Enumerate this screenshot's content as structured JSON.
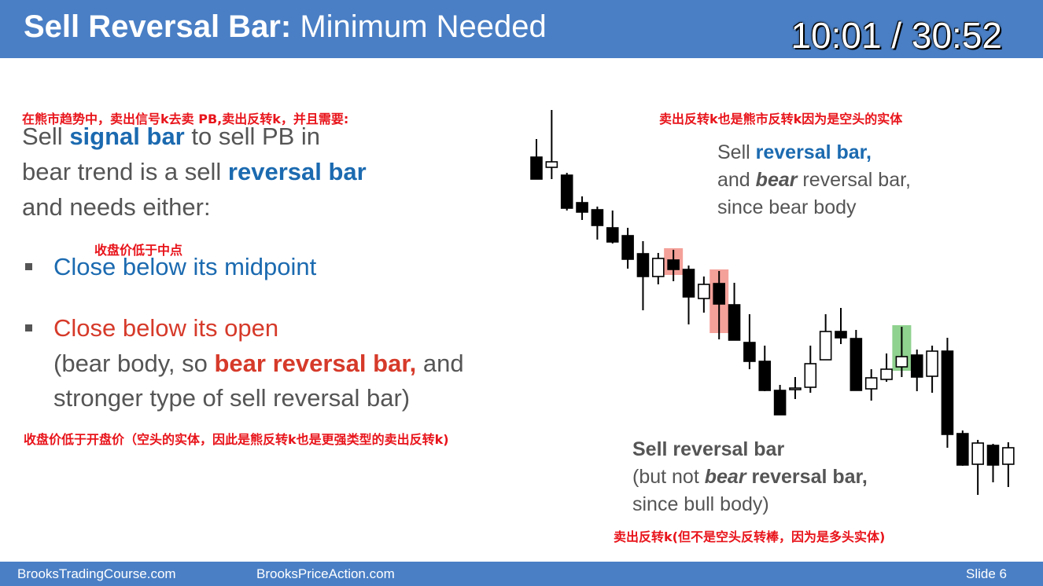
{
  "header": {
    "title_bold": "Sell Reversal Bar:",
    "title_rest": " Minimum Needed",
    "timer": "10:01 / 30:52"
  },
  "annotations_cn": {
    "top_left": "在熊市趋势中，卖出信号k去卖 PB,卖出反转k，并且需要:",
    "top_right": "卖出反转k也是熊市反转k因为是空头的实体",
    "midpoint": "收盘价低于中点",
    "open": "收盘价低于开盘价（空头的实体，因此是熊反转k也是更强类型的卖出反转k)",
    "bottom_right": "卖出反转k(但不是空头反转棒，因为是多头实体)"
  },
  "main_text": {
    "line1_a": "Sell ",
    "line1_b": "signal bar",
    "line1_c": " to sell PB in",
    "line2_a": "bear trend is a sell ",
    "line2_b": "reversal bar",
    "line3": "and needs either:",
    "bullet1": "Close below its midpoint",
    "bullet2": "Close below its open",
    "bullet2_l2_a": "(bear body, so ",
    "bullet2_l2_b": "bear reversal bar,",
    "bullet2_l2_c": " and",
    "bullet2_l3": "stronger type of sell reversal bar)"
  },
  "label_top": {
    "l1_a": "Sell ",
    "l1_b": "reversal bar,",
    "l2_a": "and ",
    "l2_b": "bear",
    "l2_c": " reversal bar,",
    "l3": "since bear body"
  },
  "label_bottom": {
    "l1": "Sell reversal bar",
    "l2_a": "(but not ",
    "l2_b": "bear",
    "l2_c": " reversal bar,",
    "l3": "since bull body)"
  },
  "footer": {
    "left": "BrooksTradingCourse.com",
    "center": "BrooksPriceAction.com",
    "slide": "Slide  6"
  },
  "colors": {
    "header_bg": "#4a7fc5",
    "highlight_red": "#f4a19a",
    "highlight_green": "#8fd18f",
    "bear_body": "#000000",
    "bull_body": "#ffffff",
    "accent_blue": "#1b6ab0",
    "accent_red": "#d63a2a"
  },
  "chart_data": {
    "type": "candlestick",
    "title": "",
    "bars": [
      {
        "o": 60,
        "h": 68,
        "l": 37,
        "c": 88
      },
      {
        "o": 73,
        "h": 0,
        "l": 88,
        "c": 66
      },
      {
        "o": 83,
        "h": 80,
        "l": 128,
        "c": 125
      },
      {
        "o": 118,
        "h": 110,
        "l": 140,
        "c": 130
      },
      {
        "o": 127,
        "h": 123,
        "l": 165,
        "c": 147
      },
      {
        "o": 150,
        "h": 128,
        "l": 170,
        "c": 168
      },
      {
        "o": 160,
        "h": 150,
        "l": 202,
        "c": 190
      },
      {
        "o": 183,
        "h": 167,
        "l": 255,
        "c": 212
      },
      {
        "o": 212,
        "h": 182,
        "l": 222,
        "c": 189
      },
      {
        "o": 191,
        "h": 178,
        "l": 218,
        "c": 203
      },
      {
        "o": 203,
        "h": 198,
        "l": 273,
        "c": 238
      },
      {
        "o": 240,
        "h": 212,
        "l": 258,
        "c": 222
      },
      {
        "o": 221,
        "h": 205,
        "l": 292,
        "c": 247
      },
      {
        "o": 248,
        "h": 220,
        "l": 292,
        "c": 293
      },
      {
        "o": 296,
        "h": 260,
        "l": 330,
        "c": 320
      },
      {
        "o": 320,
        "h": 300,
        "l": 358,
        "c": 357
      },
      {
        "o": 357,
        "h": 350,
        "l": 388,
        "c": 388
      },
      {
        "o": 354,
        "h": 340,
        "l": 368,
        "c": 354
      },
      {
        "o": 353,
        "h": 300,
        "l": 360,
        "c": 323
      },
      {
        "o": 318,
        "h": 260,
        "l": 318,
        "c": 282
      },
      {
        "o": 282,
        "h": 252,
        "l": 298,
        "c": 290
      },
      {
        "o": 291,
        "h": 280,
        "l": 357,
        "c": 357
      },
      {
        "o": 355,
        "h": 330,
        "l": 370,
        "c": 341
      },
      {
        "o": 343,
        "h": 310,
        "l": 346,
        "c": 330
      },
      {
        "o": 327,
        "h": 276,
        "l": 340,
        "c": 314
      },
      {
        "o": 312,
        "h": 305,
        "l": 358,
        "c": 340
      },
      {
        "o": 339,
        "h": 300,
        "l": 360,
        "c": 307
      },
      {
        "o": 307,
        "h": 290,
        "l": 430,
        "c": 413
      },
      {
        "o": 412,
        "h": 408,
        "l": 453,
        "c": 452
      },
      {
        "o": 451,
        "h": 420,
        "l": 490,
        "c": 424
      },
      {
        "o": 427,
        "h": 425,
        "l": 474,
        "c": 452
      },
      {
        "o": 451,
        "h": 423,
        "l": 480,
        "c": 430
      }
    ],
    "highlights": [
      {
        "bar": 9,
        "color": "red"
      },
      {
        "bar": 12,
        "color": "red"
      },
      {
        "bar": 24,
        "color": "green"
      }
    ]
  }
}
